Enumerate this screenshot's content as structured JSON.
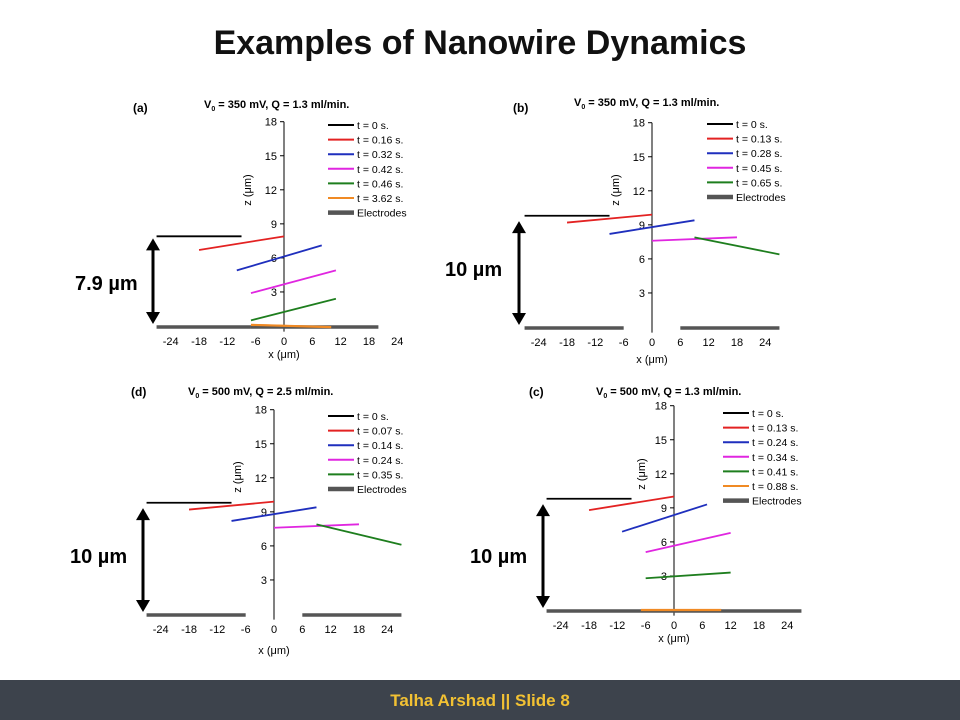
{
  "slide": {
    "title": "Examples of Nanowire Dynamics",
    "footer": "Talha Arshad  || Slide 8"
  },
  "colors": {
    "footer_bg": "#3d434c",
    "footer_text": "#f2c133",
    "electrodes": "#555555"
  },
  "chart_data": [
    {
      "type": "line",
      "panel_label": "(a)",
      "title": "V0 = 350 mV, Q = 1.3 ml/min.",
      "title_parts": {
        "v": "V",
        "sub": "0",
        "rest": " = 350 mV, Q = 1.3 ml/min."
      },
      "xlabel": "x (μm)",
      "ylabel": "z (μm)",
      "xlim": [
        -28,
        28
      ],
      "ylim": [
        -0.5,
        18
      ],
      "xticks": [
        -24,
        -18,
        -12,
        -6,
        0,
        6,
        12,
        18,
        24
      ],
      "yticks": [
        3,
        6,
        9,
        12,
        15,
        18
      ],
      "distance_label": "7.9 µm",
      "distance_range": [
        0,
        7.9
      ],
      "series": [
        {
          "name": "t = 0 s.",
          "color": "#000000",
          "x": [
            -27,
            -9
          ],
          "y": [
            7.9,
            7.9
          ]
        },
        {
          "name": "t = 0.16 s.",
          "color": "#e32222",
          "x": [
            -18,
            0
          ],
          "y": [
            6.7,
            7.9
          ]
        },
        {
          "name": "t = 0.32 s.",
          "color": "#1f2fbd",
          "x": [
            -10,
            8
          ],
          "y": [
            4.9,
            7.1
          ]
        },
        {
          "name": "t = 0.42 s.",
          "color": "#e026e0",
          "x": [
            -7,
            11
          ],
          "y": [
            2.9,
            4.9
          ]
        },
        {
          "name": "t = 0.46 s.",
          "color": "#1e7e1e",
          "x": [
            -7,
            11
          ],
          "y": [
            0.5,
            2.4
          ]
        },
        {
          "name": "t = 3.62 s.",
          "color": "#f08a24",
          "x": [
            -7,
            10
          ],
          "y": [
            0.1,
            -0.1
          ]
        },
        {
          "name": "Electrodes",
          "color": "#555555",
          "electrode": true,
          "segments": [
            [
              -27,
              -7
            ],
            [
              -7,
              20
            ]
          ]
        }
      ]
    },
    {
      "type": "line",
      "panel_label": "(b)",
      "title": "V0 = 350 mV, Q = 1.3 ml/min.",
      "title_parts": {
        "v": "V",
        "sub": "0",
        "rest": " = 350 mV, Q = 1.3 ml/min."
      },
      "xlabel": "x (μm)",
      "ylabel": "z (μm)",
      "xlim": [
        -28,
        28
      ],
      "ylim": [
        -0.5,
        18
      ],
      "xticks": [
        -24,
        -18,
        -12,
        -6,
        0,
        6,
        12,
        18,
        24
      ],
      "yticks": [
        3,
        6,
        9,
        12,
        15,
        18
      ],
      "distance_label": "10 µm",
      "distance_range": [
        0,
        9.5
      ],
      "series": [
        {
          "name": "t = 0 s.",
          "color": "#000000",
          "x": [
            -27,
            -9
          ],
          "y": [
            9.8,
            9.8
          ]
        },
        {
          "name": "t = 0.13 s.",
          "color": "#e32222",
          "x": [
            -18,
            0
          ],
          "y": [
            9.2,
            9.9
          ]
        },
        {
          "name": "t = 0.28 s.",
          "color": "#1f2fbd",
          "x": [
            -9,
            9
          ],
          "y": [
            8.2,
            9.4
          ]
        },
        {
          "name": "t = 0.45 s.",
          "color": "#e026e0",
          "x": [
            0,
            18
          ],
          "y": [
            7.6,
            7.9
          ]
        },
        {
          "name": "t = 0.65 s.",
          "color": "#1e7e1e",
          "x": [
            9,
            27
          ],
          "y": [
            7.9,
            6.4
          ]
        },
        {
          "name": "Electrodes",
          "color": "#555555",
          "electrode": true,
          "segments": [
            [
              -27,
              -6
            ],
            [
              6,
              27
            ]
          ]
        }
      ]
    },
    {
      "type": "line",
      "panel_label": "(d)",
      "title": "V0 = 500 mV, Q = 2.5 ml/min.",
      "title_parts": {
        "v": "V",
        "sub": "0",
        "rest": " = 500 mV, Q = 2.5 ml/min."
      },
      "xlabel": "x (μm)",
      "ylabel": "z (μm)",
      "xlim": [
        -28,
        28
      ],
      "ylim": [
        -0.5,
        18
      ],
      "xticks": [
        -24,
        -18,
        -12,
        -6,
        0,
        6,
        12,
        18,
        24
      ],
      "yticks": [
        3,
        6,
        9,
        12,
        15,
        18
      ],
      "distance_label": "10 µm",
      "distance_range": [
        0,
        9.5
      ],
      "series": [
        {
          "name": "t = 0 s.",
          "color": "#000000",
          "x": [
            -27,
            -9
          ],
          "y": [
            9.8,
            9.8
          ]
        },
        {
          "name": "t = 0.07 s.",
          "color": "#e32222",
          "x": [
            -18,
            0
          ],
          "y": [
            9.2,
            9.9
          ]
        },
        {
          "name": "t = 0.14 s.",
          "color": "#1f2fbd",
          "x": [
            -9,
            9
          ],
          "y": [
            8.2,
            9.4
          ]
        },
        {
          "name": "t = 0.24 s.",
          "color": "#e026e0",
          "x": [
            0,
            18
          ],
          "y": [
            7.6,
            7.9
          ]
        },
        {
          "name": "t = 0.35 s.",
          "color": "#1e7e1e",
          "x": [
            9,
            27
          ],
          "y": [
            7.9,
            6.1
          ]
        },
        {
          "name": "Electrodes",
          "color": "#555555",
          "electrode": true,
          "segments": [
            [
              -27,
              -6
            ],
            [
              6,
              27
            ]
          ]
        }
      ]
    },
    {
      "type": "line",
      "panel_label": "(c)",
      "title": "V0 = 500 mV, Q = 1.3 ml/min.",
      "title_parts": {
        "v": "V",
        "sub": "0",
        "rest": " = 500 mV, Q = 1.3 ml/min."
      },
      "xlabel": "x (μm)",
      "ylabel": "z (μm)",
      "xlim": [
        -28,
        28
      ],
      "ylim": [
        -0.5,
        18
      ],
      "xticks": [
        -24,
        -18,
        -12,
        -6,
        0,
        6,
        12,
        18,
        24
      ],
      "yticks": [
        3,
        6,
        9,
        12,
        15,
        18
      ],
      "distance_label": "10 µm",
      "distance_range": [
        0,
        9.5
      ],
      "series": [
        {
          "name": "t = 0 s.",
          "color": "#000000",
          "x": [
            -27,
            -9
          ],
          "y": [
            9.8,
            9.8
          ]
        },
        {
          "name": "t = 0.13 s.",
          "color": "#e32222",
          "x": [
            -18,
            0
          ],
          "y": [
            8.8,
            10
          ]
        },
        {
          "name": "t = 0.24 s.",
          "color": "#1f2fbd",
          "x": [
            -11,
            7
          ],
          "y": [
            6.9,
            9.3
          ]
        },
        {
          "name": "t = 0.34 s.",
          "color": "#e026e0",
          "x": [
            -6,
            12
          ],
          "y": [
            5.1,
            6.8
          ]
        },
        {
          "name": "t = 0.41 s.",
          "color": "#1e7e1e",
          "x": [
            -6,
            12
          ],
          "y": [
            2.8,
            3.3
          ]
        },
        {
          "name": "t = 0.88 s.",
          "color": "#f08a24",
          "x": [
            -7,
            10
          ],
          "y": [
            0,
            0
          ]
        },
        {
          "name": "Electrodes",
          "color": "#555555",
          "electrode": true,
          "segments": [
            [
              -27,
              -7
            ],
            [
              -7,
              27
            ]
          ]
        }
      ]
    }
  ]
}
